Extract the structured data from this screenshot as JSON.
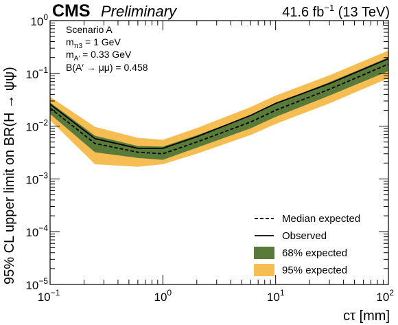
{
  "header": {
    "experiment": "CMS",
    "status": "Preliminary",
    "lumi_value": "41.6 fb",
    "lumi_exp": "−1",
    "energy": "(13 TeV)"
  },
  "annotations": {
    "scenario": "Scenario A",
    "line2_main": "m",
    "line2_sub": "π3",
    "line2_rest": " = 1 GeV",
    "line3_main": "m",
    "line3_sub": "A′",
    "line3_rest": " = 0.33 GeV",
    "line4": "B(A′ → μμ) = 0.458"
  },
  "colors": {
    "band68": "#5a7a3a",
    "band95": "#f6bd53",
    "observed": "#000000",
    "median": "#000000"
  },
  "chart_data": {
    "type": "line",
    "title": "",
    "xlabel": "cτ [mm]",
    "ylabel": "95% CL upper limit on BR(H → ψψ)",
    "x_scale": "log",
    "y_scale": "log",
    "xlim": [
      0.1,
      100
    ],
    "ylim": [
      1e-05,
      1
    ],
    "x_ticks": [
      {
        "value": 0.1,
        "base": "10",
        "exp": "−1"
      },
      {
        "value": 1,
        "base": "10",
        "exp": "0"
      },
      {
        "value": 10,
        "base": "10",
        "exp": "1"
      },
      {
        "value": 100,
        "base": "10",
        "exp": "2"
      }
    ],
    "y_ticks": [
      {
        "value": 1e-05,
        "base": "10",
        "exp": "−5"
      },
      {
        "value": 0.0001,
        "base": "10",
        "exp": "−4"
      },
      {
        "value": 0.001,
        "base": "10",
        "exp": "−3"
      },
      {
        "value": 0.01,
        "base": "10",
        "exp": "−2"
      },
      {
        "value": 0.1,
        "base": "10",
        "exp": "−1"
      },
      {
        "value": 1,
        "base": "10",
        "exp": "0"
      }
    ],
    "x": [
      0.1,
      0.25,
      0.6,
      1.0,
      2.0,
      6.0,
      10,
      30,
      100
    ],
    "observed": [
      0.026,
      0.0058,
      0.0038,
      0.0038,
      0.0063,
      0.016,
      0.027,
      0.064,
      0.19
    ],
    "median": [
      0.022,
      0.0047,
      0.0032,
      0.003,
      0.005,
      0.012,
      0.02,
      0.05,
      0.15
    ],
    "band68_low": [
      0.017,
      0.0032,
      0.0025,
      0.0023,
      0.0039,
      0.0091,
      0.015,
      0.038,
      0.11
    ],
    "band68_high": [
      0.028,
      0.0066,
      0.0042,
      0.0041,
      0.0067,
      0.016,
      0.027,
      0.068,
      0.2
    ],
    "band95_low": [
      0.013,
      0.0019,
      0.0017,
      0.0019,
      0.003,
      0.0068,
      0.011,
      0.027,
      0.081
    ],
    "band95_high": [
      0.036,
      0.0097,
      0.006,
      0.0055,
      0.0092,
      0.023,
      0.038,
      0.092,
      0.27
    ],
    "legend": {
      "placement": "bottom-right",
      "entries": [
        {
          "key": "median",
          "label": "Median expected",
          "style": "dashed"
        },
        {
          "key": "observed",
          "label": "Observed",
          "style": "solid"
        },
        {
          "key": "band68",
          "label": "68% expected",
          "style": "fill"
        },
        {
          "key": "band95",
          "label": "95% expected",
          "style": "fill"
        }
      ]
    }
  }
}
